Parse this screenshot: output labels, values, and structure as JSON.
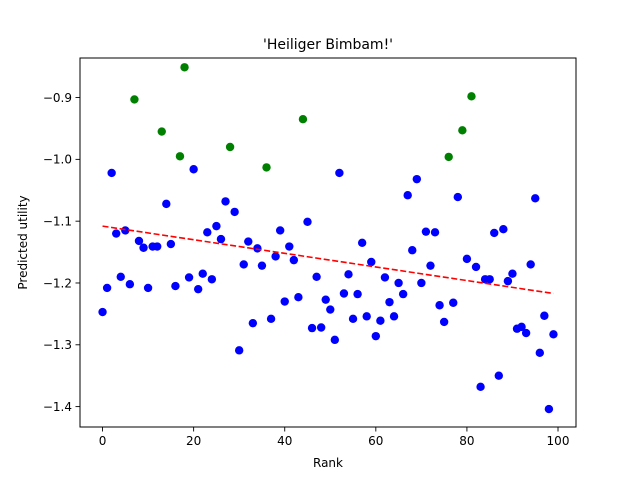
{
  "chart_data": {
    "type": "scatter",
    "title": "'Heiliger Bimbam!'",
    "xlabel": "Rank",
    "ylabel": "Predicted utility",
    "xlim": [
      -4.95,
      103.95
    ],
    "ylim": [
      -1.433,
      -0.836
    ],
    "x_ticks": [
      0,
      20,
      40,
      60,
      80,
      100
    ],
    "x_tick_labels": [
      "0",
      "20",
      "40",
      "60",
      "80",
      "100"
    ],
    "y_ticks": [
      -1.4,
      -1.3,
      -1.2,
      -1.1,
      -1.0,
      -0.9
    ],
    "y_tick_labels": [
      "−1.4",
      "−1.3",
      "−1.2",
      "−1.1",
      "−1.0",
      "−0.9"
    ],
    "grid": false,
    "colors": {
      "blue": "#0000ff",
      "green": "#008000",
      "trend": "#ff0000"
    },
    "series": [
      {
        "color": "blue",
        "x": [
          0,
          1,
          2,
          3,
          4,
          5,
          6,
          8,
          9,
          10,
          11,
          12,
          14,
          15,
          16,
          19,
          20,
          21,
          22,
          23,
          24,
          25,
          26,
          27,
          29,
          30,
          31,
          32,
          33,
          34,
          35,
          37,
          38,
          39,
          40,
          41,
          42,
          43,
          45,
          46,
          47,
          48,
          49,
          50,
          51,
          52,
          53,
          54,
          55,
          56,
          57,
          58,
          59,
          60,
          61,
          62,
          63,
          64,
          65,
          66,
          67,
          68,
          69,
          70,
          71,
          72,
          73,
          74,
          75,
          77,
          78,
          80,
          82,
          83,
          84,
          85,
          86,
          87,
          88,
          89,
          90,
          91,
          92,
          93,
          94,
          95,
          96,
          97,
          98,
          99
        ],
        "y": [
          -1.247,
          -1.208,
          -1.022,
          -1.12,
          -1.19,
          -1.115,
          -1.202,
          -1.132,
          -1.143,
          -1.208,
          -1.141,
          -1.141,
          -1.072,
          -1.137,
          -1.205,
          -1.191,
          -1.016,
          -1.21,
          -1.185,
          -1.118,
          -1.194,
          -1.108,
          -1.129,
          -1.068,
          -1.085,
          -1.309,
          -1.17,
          -1.133,
          -1.265,
          -1.144,
          -1.172,
          -1.258,
          -1.157,
          -1.115,
          -1.23,
          -1.141,
          -1.163,
          -1.223,
          -1.101,
          -1.273,
          -1.19,
          -1.272,
          -1.227,
          -1.243,
          -1.292,
          -1.022,
          -1.217,
          -1.186,
          -1.258,
          -1.218,
          -1.135,
          -1.254,
          -1.166,
          -1.286,
          -1.261,
          -1.191,
          -1.231,
          -1.254,
          -1.2,
          -1.218,
          -1.058,
          -1.147,
          -1.032,
          -1.2,
          -1.117,
          -1.172,
          -1.118,
          -1.236,
          -1.263,
          -1.232,
          -1.061,
          -1.161,
          -1.174,
          -1.368,
          -1.194,
          -1.194,
          -1.119,
          -1.35,
          -1.113,
          -1.197,
          -1.185,
          -1.274,
          -1.271,
          -1.281,
          -1.17,
          -1.063,
          -1.313,
          -1.253,
          -1.404,
          -1.283
        ]
      },
      {
        "color": "green",
        "x": [
          7,
          13,
          17,
          18,
          28,
          36,
          44,
          76,
          79,
          81
        ],
        "y": [
          -0.903,
          -0.955,
          -0.995,
          -0.851,
          -0.98,
          -1.013,
          -0.935,
          -0.996,
          -0.953,
          -0.898
        ]
      }
    ],
    "trend_line": {
      "style": "dashed",
      "x": [
        0,
        99
      ],
      "y": [
        -1.108,
        -1.217
      ]
    }
  }
}
